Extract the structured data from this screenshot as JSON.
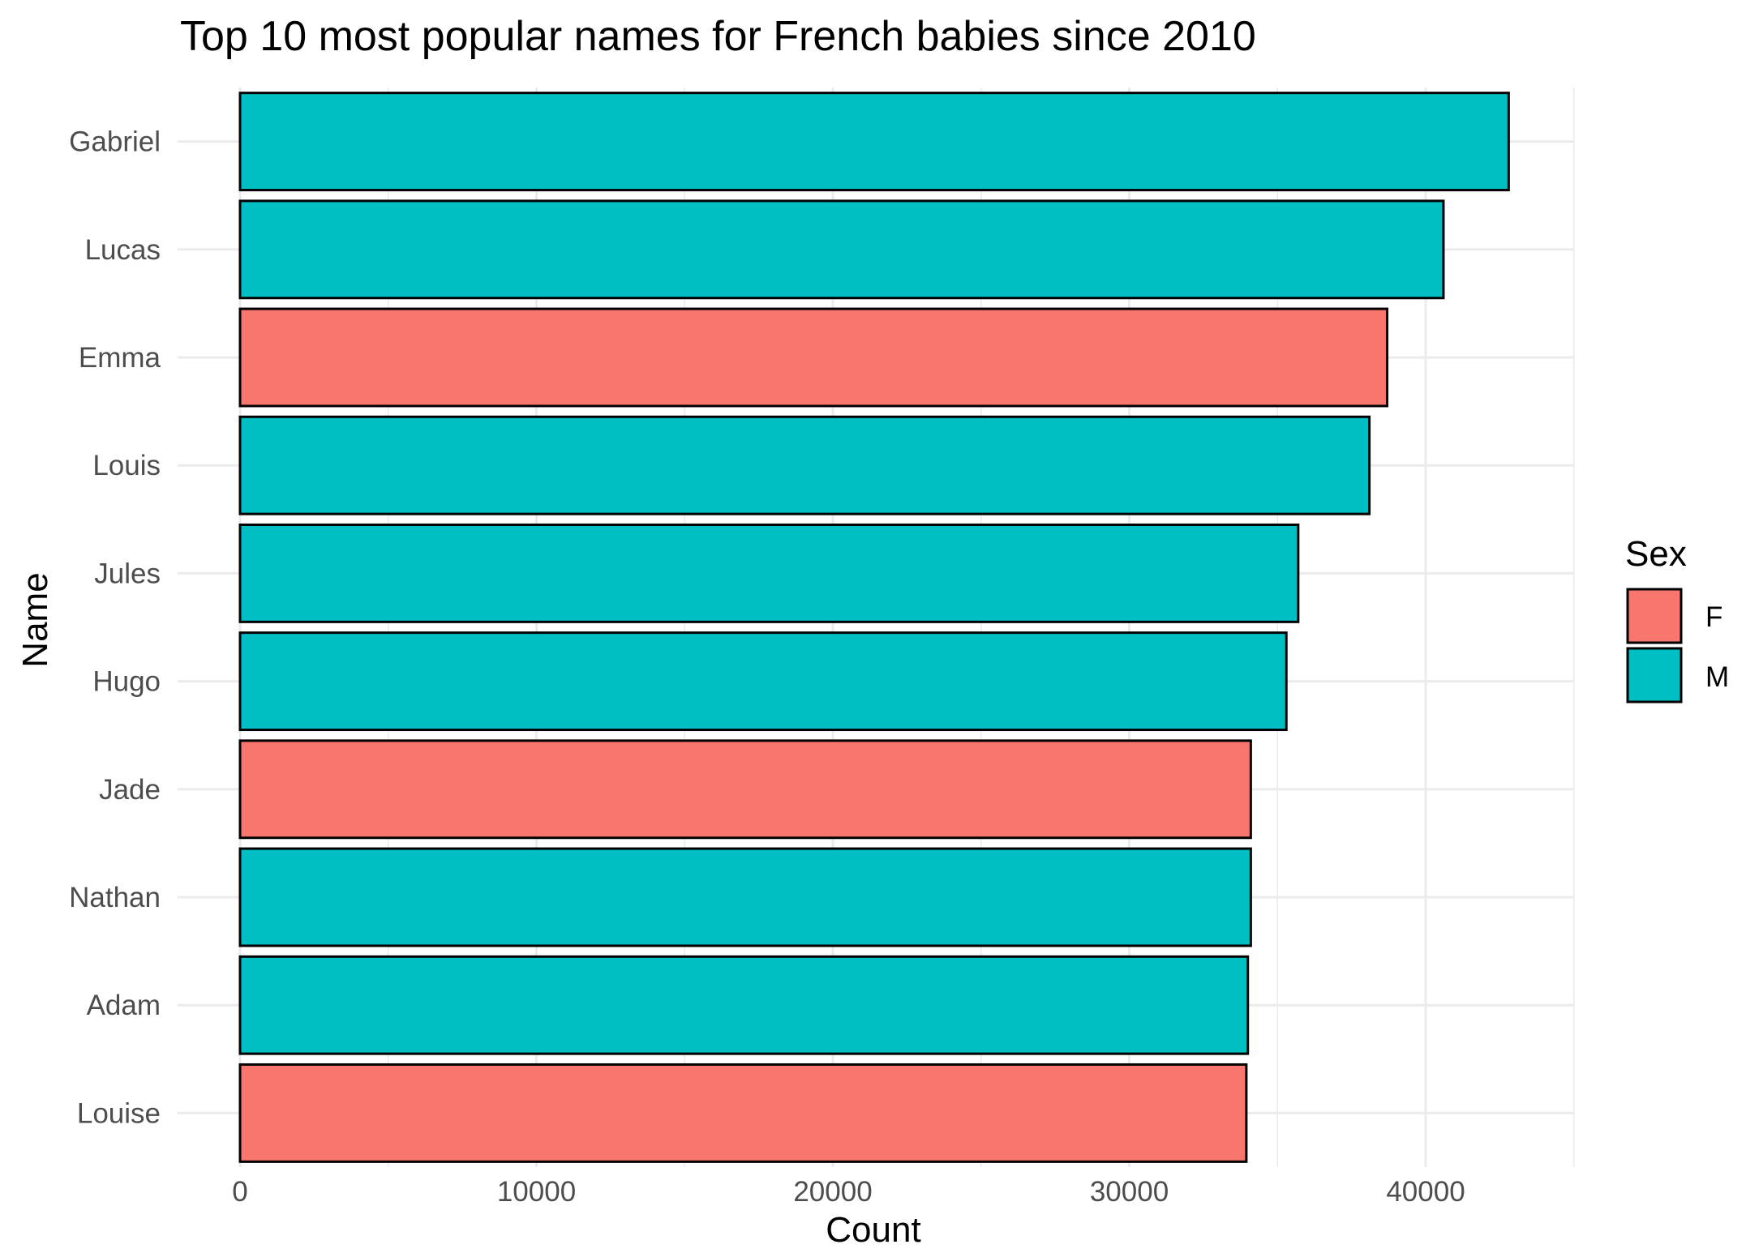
{
  "chart_data": {
    "type": "bar",
    "orientation": "horizontal",
    "title": "Top 10 most popular names for French babies since 2010",
    "xlabel": "Count",
    "ylabel": "Name",
    "xlim": [
      0,
      45000
    ],
    "x_ticks": [
      0,
      10000,
      20000,
      30000,
      40000
    ],
    "grid": true,
    "legend": {
      "title": "Sex",
      "position": "right",
      "entries": [
        {
          "label": "F",
          "color": "#F8766D"
        },
        {
          "label": "M",
          "color": "#00BFC4"
        }
      ]
    },
    "bars": [
      {
        "name": "Gabriel",
        "value": 42800,
        "sex": "M"
      },
      {
        "name": "Lucas",
        "value": 40600,
        "sex": "M"
      },
      {
        "name": "Emma",
        "value": 38700,
        "sex": "F"
      },
      {
        "name": "Louis",
        "value": 38100,
        "sex": "M"
      },
      {
        "name": "Jules",
        "value": 35700,
        "sex": "M"
      },
      {
        "name": "Hugo",
        "value": 35300,
        "sex": "M"
      },
      {
        "name": "Jade",
        "value": 34100,
        "sex": "F"
      },
      {
        "name": "Nathan",
        "value": 34100,
        "sex": "M"
      },
      {
        "name": "Adam",
        "value": 34000,
        "sex": "M"
      },
      {
        "name": "Louise",
        "value": 33950,
        "sex": "F"
      }
    ]
  },
  "colors": {
    "F": "#F8766D",
    "M": "#00BFC4",
    "grid": "#EBEBEB",
    "bar_border": "#000000"
  }
}
